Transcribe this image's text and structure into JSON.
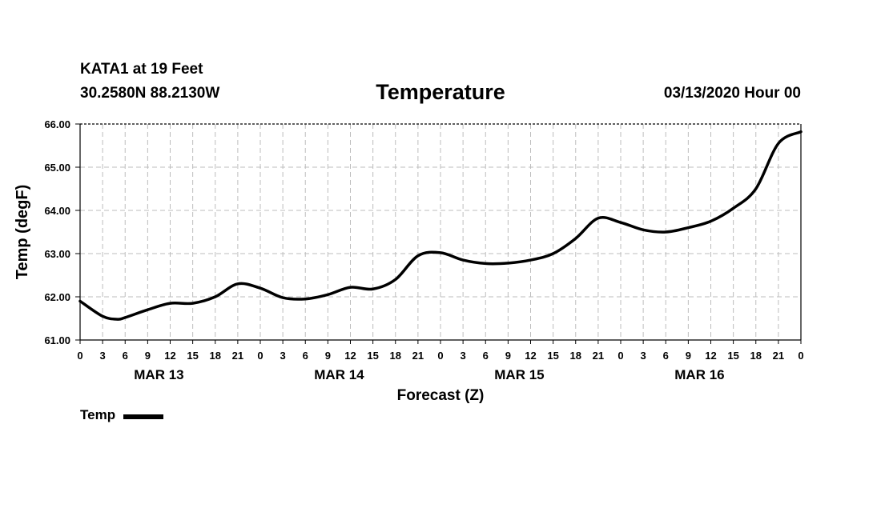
{
  "header": {
    "station": "KATA1 at 19 Feet",
    "coordinates": "30.2580N 88.2130W",
    "title": "Temperature",
    "datetime": "03/13/2020 Hour 00"
  },
  "legend": {
    "label": "Temp",
    "color": "#000000"
  },
  "chart_data": {
    "type": "line",
    "title": "Temperature",
    "xlabel": "Forecast (Z)",
    "ylabel": "Temp (degF)",
    "ylim": [
      61.0,
      66.0
    ],
    "xlim_hours": [
      0,
      96
    ],
    "grid": true,
    "y_ticks": [
      "61.00",
      "62.00",
      "63.00",
      "64.00",
      "65.00",
      "66.00"
    ],
    "x_tick_labels": [
      "0",
      "3",
      "6",
      "9",
      "12",
      "15",
      "18",
      "21",
      "0",
      "3",
      "6",
      "9",
      "12",
      "15",
      "18",
      "21",
      "0",
      "3",
      "6",
      "9",
      "12",
      "15",
      "18",
      "21",
      "0",
      "3",
      "6",
      "9",
      "12",
      "15",
      "18",
      "21",
      "0"
    ],
    "day_labels": [
      {
        "label": "MAR 13",
        "hour": 10.5
      },
      {
        "label": "MAR 14",
        "hour": 34.5
      },
      {
        "label": "MAR 15",
        "hour": 58.5
      },
      {
        "label": "MAR 16",
        "hour": 82.5
      }
    ],
    "series": [
      {
        "name": "Temp",
        "color": "#000000",
        "x": [
          0,
          3,
          5,
          6,
          9,
          12,
          15,
          18,
          21,
          24,
          27,
          30,
          33,
          36,
          39,
          42,
          45,
          48,
          51,
          54,
          57,
          60,
          63,
          66,
          69,
          72,
          75,
          78,
          81,
          84,
          87,
          90,
          93,
          96
        ],
        "values": [
          61.9,
          61.55,
          61.48,
          61.52,
          61.7,
          61.85,
          61.85,
          62.0,
          62.3,
          62.2,
          61.98,
          61.95,
          62.05,
          62.22,
          62.18,
          62.4,
          62.95,
          63.02,
          62.85,
          62.77,
          62.78,
          62.85,
          63.0,
          63.35,
          63.82,
          63.72,
          63.55,
          63.5,
          63.6,
          63.75,
          64.05,
          64.5,
          65.55,
          65.82
        ]
      }
    ]
  }
}
